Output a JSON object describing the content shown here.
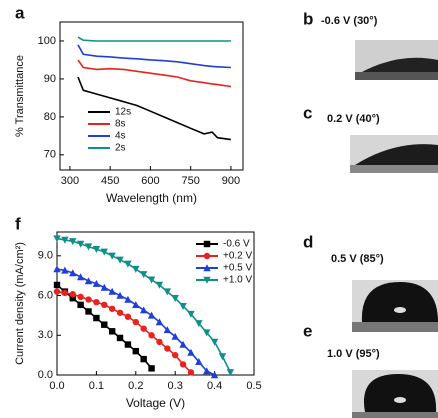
{
  "chart_data": [
    {
      "type": "line",
      "panel": "a",
      "xlabel": "Wavelength (nm)",
      "ylabel": "% Transmittance",
      "x": [
        330,
        350,
        400,
        450,
        500,
        550,
        600,
        650,
        700,
        750,
        800,
        830,
        850,
        900
      ],
      "series": [
        {
          "name": "12s",
          "color": "#000000",
          "values": [
            90.5,
            87,
            86,
            85,
            84,
            83,
            81.5,
            80,
            78.5,
            77,
            75.5,
            76,
            74.5,
            74
          ]
        },
        {
          "name": "8s",
          "color": "#e8231f",
          "values": [
            95,
            93,
            92.5,
            92.7,
            92.5,
            92,
            91.5,
            91,
            90.5,
            89.5,
            89,
            88.7,
            88.5,
            88
          ]
        },
        {
          "name": "4s",
          "color": "#1f3fd8",
          "values": [
            99,
            96.5,
            96,
            95.8,
            95.5,
            95.3,
            95,
            94.8,
            94.5,
            94,
            93.5,
            93.3,
            93.2,
            93
          ]
        },
        {
          "name": "2s",
          "color": "#0f8f8a",
          "values": [
            101,
            100.2,
            100,
            100,
            100,
            100,
            100,
            100,
            100,
            100,
            100,
            100,
            100,
            100
          ]
        }
      ],
      "xlim": [
        263,
        945
      ],
      "ylim": [
        66,
        105
      ],
      "xticks": [
        300,
        450,
        600,
        750,
        900
      ],
      "yticks": [
        70,
        80,
        90,
        100
      ],
      "legend": "lower left"
    },
    {
      "type": "line",
      "panel": "f",
      "xlabel": "Voltage (V)",
      "ylabel": "Current density (mA/cm²)",
      "x": [
        0,
        0.02,
        0.04,
        0.06,
        0.08,
        0.1,
        0.12,
        0.14,
        0.16,
        0.18,
        0.2,
        0.22,
        0.24,
        0.26,
        0.28,
        0.3,
        0.32,
        0.34,
        0.36,
        0.38,
        0.4,
        0.42,
        0.44
      ],
      "series": [
        {
          "name": "-0.6 V",
          "color": "#000000",
          "marker": "square",
          "values": [
            6.8,
            6.3,
            5.8,
            5.3,
            4.8,
            4.3,
            3.8,
            3.3,
            2.8,
            2.3,
            1.8,
            1.2,
            0.5,
            null,
            null,
            null,
            null,
            null,
            null,
            null,
            null,
            null,
            null
          ]
        },
        {
          "name": "+0.2 V",
          "color": "#e8231f",
          "marker": "circle",
          "values": [
            6.3,
            6.2,
            6.1,
            5.9,
            5.7,
            5.5,
            5.3,
            5.0,
            4.7,
            4.4,
            4.0,
            3.5,
            3.0,
            2.5,
            2.0,
            1.5,
            0.8,
            0.2,
            null,
            null,
            null,
            null,
            null
          ]
        },
        {
          "name": "+0.5 V",
          "color": "#1f3fd8",
          "marker": "triangle-up",
          "values": [
            8.0,
            7.9,
            7.7,
            7.4,
            7.1,
            6.9,
            6.6,
            6.3,
            6.0,
            5.7,
            5.3,
            4.9,
            4.5,
            4.0,
            3.4,
            2.9,
            2.3,
            1.7,
            1.0,
            0.3,
            0.0,
            null,
            null
          ]
        },
        {
          "name": "+1.0 V",
          "color": "#0f8f8a",
          "marker": "triangle-down",
          "values": [
            10.3,
            10.2,
            10.1,
            9.9,
            9.7,
            9.5,
            9.3,
            9.0,
            8.7,
            8.4,
            8.0,
            7.6,
            7.2,
            6.8,
            6.3,
            5.8,
            5.2,
            4.6,
            3.9,
            3.2,
            2.5,
            1.4,
            0.2
          ]
        }
      ],
      "xlim": [
        0,
        0.5
      ],
      "ylim": [
        0,
        10.8
      ],
      "xticks": [
        {
          "value": 0,
          "label": "0.0"
        },
        {
          "value": 0.1,
          "label": "0.1"
        },
        {
          "value": 0.2,
          "label": "0.2"
        },
        {
          "value": 0.3,
          "label": "0.3"
        },
        {
          "value": 0.4,
          "label": "0.4"
        },
        {
          "value": 0.5,
          "label": "0.5"
        }
      ],
      "yticks": [
        {
          "value": 0,
          "label": "0.0"
        },
        {
          "value": 3,
          "label": "3.0"
        },
        {
          "value": 6,
          "label": "6.0"
        },
        {
          "value": 9,
          "label": "9.0"
        }
      ],
      "legend": "upper right"
    }
  ],
  "panels": [
    {
      "letter": "b",
      "label": "-0.6 V (30°)"
    },
    {
      "letter": "c",
      "label": "0.2 V (40°)"
    },
    {
      "letter": "d",
      "label": "0.5 V (85°)"
    },
    {
      "letter": "e",
      "label": "1.0 V (95°)"
    }
  ]
}
